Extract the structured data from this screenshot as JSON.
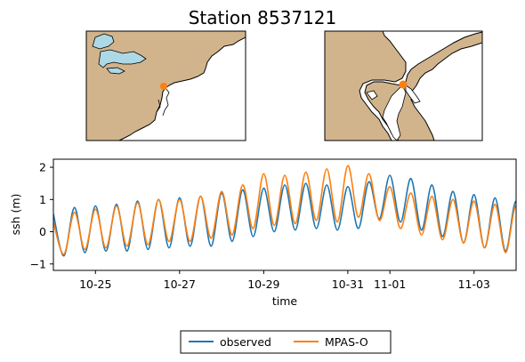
{
  "figure": {
    "title": "Station 8537121"
  },
  "maps": [
    {
      "id": "regional",
      "land_color": "#d2b48c",
      "water_color": "#add8e6",
      "marker_color": "#ff7f0e"
    },
    {
      "id": "local",
      "land_color": "#d2b48c",
      "water_color": "#ffffff",
      "marker_color": "#ff7f0e"
    }
  ],
  "chart_data": {
    "type": "line",
    "xlabel": "time",
    "ylabel": "ssh (m)",
    "xlim": [
      "2023-10-24 00:00",
      "2023-11-04 00:00"
    ],
    "ylim": [
      -1.2,
      2.25
    ],
    "xticks": [
      {
        "value": "2023-10-25",
        "label": "10-25"
      },
      {
        "value": "2023-10-27",
        "label": "10-27"
      },
      {
        "value": "2023-10-29",
        "label": "10-29"
      },
      {
        "value": "2023-10-31",
        "label": "10-31"
      },
      {
        "value": "2023-11-01",
        "label": "11-01"
      },
      {
        "value": "2023-11-03",
        "label": "11-03"
      }
    ],
    "yticks": [
      -1,
      0,
      1,
      2
    ],
    "legend_position": "bottom-center",
    "series": [
      {
        "name": "observed",
        "color": "#1f77b4",
        "start": "2023-10-24 00:00",
        "step_hours": 6,
        "values": [
          0.55,
          -0.75,
          0.75,
          -0.65,
          0.8,
          -0.6,
          0.85,
          -0.6,
          0.95,
          -0.55,
          1.0,
          -0.5,
          1.05,
          -0.45,
          1.1,
          -0.45,
          1.2,
          -0.3,
          1.3,
          -0.15,
          1.35,
          0.0,
          1.45,
          0.05,
          1.5,
          0.1,
          1.45,
          0.05,
          1.4,
          0.1,
          1.55,
          0.4,
          1.75,
          0.3,
          1.65,
          0.05,
          1.45,
          -0.15,
          1.25,
          -0.35,
          1.15,
          -0.5,
          1.05,
          -0.6,
          0.95,
          -0.7,
          0.9,
          -0.75,
          0.85,
          -0.8,
          0.8,
          -0.85,
          0.75,
          -0.85
        ]
      },
      {
        "name": "MPAS-O",
        "color": "#ff7f0e",
        "start": "2023-10-24 00:00",
        "step_hours": 6,
        "values": [
          0.3,
          -0.7,
          0.6,
          -0.55,
          0.7,
          -0.5,
          0.8,
          -0.45,
          0.9,
          -0.4,
          1.0,
          -0.3,
          1.0,
          -0.3,
          1.1,
          -0.2,
          1.25,
          -0.1,
          1.45,
          0.1,
          1.8,
          0.2,
          1.75,
          0.25,
          1.85,
          0.35,
          1.95,
          0.3,
          2.05,
          0.45,
          1.8,
          0.35,
          1.4,
          0.1,
          1.2,
          -0.1,
          1.1,
          -0.25,
          1.0,
          -0.35,
          0.95,
          -0.5,
          0.85,
          -0.65,
          0.8,
          -0.8
        ]
      }
    ]
  }
}
